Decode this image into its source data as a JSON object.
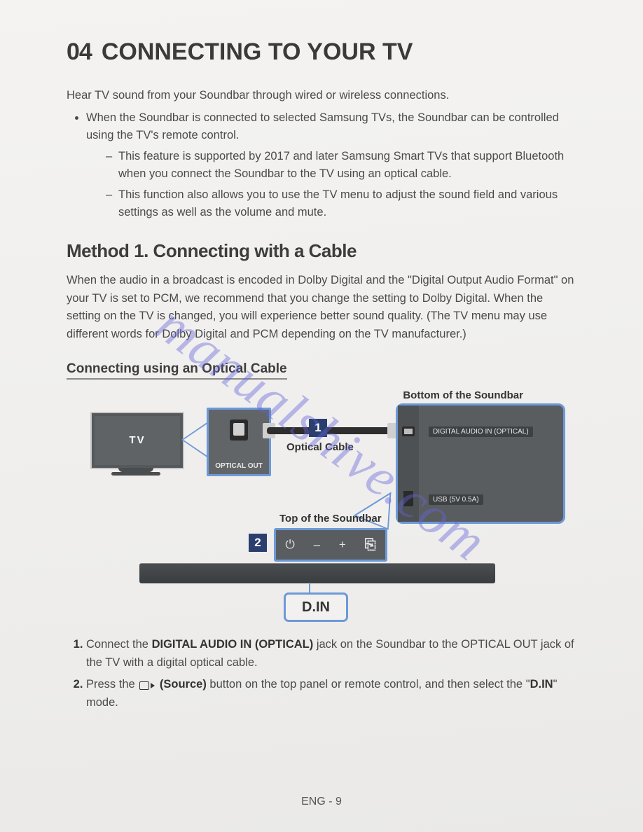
{
  "header": {
    "number": "04",
    "title": "CONNECTING TO YOUR TV"
  },
  "intro": "Hear TV sound from your Soundbar through wired or wireless connections.",
  "bullet_main": "When the Soundbar is connected to selected Samsung TVs, the Soundbar can be controlled using the TV's remote control.",
  "bullet_sub1": "This feature is supported by 2017 and later Samsung Smart TVs that support Bluetooth when you connect the Soundbar to the TV using an optical cable.",
  "bullet_sub2": "This function also allows you to use the TV menu to adjust the sound field and various settings as well as the volume and mute.",
  "method1_title": "Method 1. Connecting with a Cable",
  "method1_para": "When the audio in a broadcast is encoded in Dolby Digital and the \"Digital Output Audio Format\" on your TV is set to PCM, we recommend that you change the setting to Dolby Digital. When the setting on the TV is changed, you will experience better sound quality. (The TV menu may use different words for Dolby Digital and PCM depending on the TV manufacturer.)",
  "sub_heading": "Connecting using an Optical Cable",
  "diagram": {
    "label_bottom_soundbar": "Bottom of the Soundbar",
    "label_top_soundbar": "Top of the Soundbar",
    "tv_label": "TV",
    "optical_out_label": "OPTICAL OUT",
    "cable_label": "Optical Cable",
    "step1": "1",
    "step2": "2",
    "enc_digital_label": "DIGITAL AUDIO IN (OPTICAL)",
    "enc_usb_label": "USB (5V 0.5A)",
    "panel_power": "⏻",
    "panel_minus": "–",
    "panel_plus": "+",
    "panel_source": "⎘",
    "din_label": "D.IN",
    "colors": {
      "callout_border": "#6d99d8",
      "step_bg": "#2a3f6e",
      "device_bg": "#5a5d60"
    }
  },
  "step1_pre": "Connect the ",
  "step1_bold": "DIGITAL AUDIO IN (OPTICAL)",
  "step1_post": " jack on the Soundbar to the OPTICAL OUT jack of the TV with a digital optical cable.",
  "step2_pre": "Press the ",
  "step2_bold": " (Source)",
  "step2_mid": " button on the top panel or remote control, and then select the \"",
  "step2_bold2": "D.IN",
  "step2_post": "\" mode.",
  "footer": "ENG - 9",
  "watermark": "manualshive.com"
}
